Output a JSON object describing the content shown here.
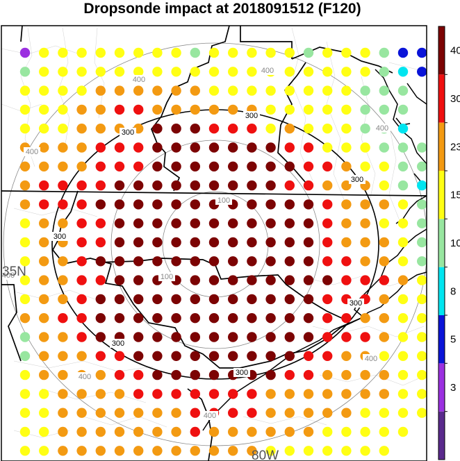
{
  "title": "Dropsonde impact at 2018091512 (F120)",
  "chart_data": {
    "type": "heatmap",
    "title": "Dropsonde impact at 2018091512 (F120)",
    "map": {
      "lat_label": "35N",
      "lon_label": "80W",
      "range_contours": [
        {
          "value": 100,
          "label": "100",
          "color": "#888888"
        },
        {
          "value": 200,
          "label": "",
          "color": "#888888"
        },
        {
          "value": 300,
          "label": "300",
          "color": "#000000"
        },
        {
          "value": 400,
          "label": "400",
          "color": "#888888"
        }
      ]
    },
    "colorbar": {
      "tick_labels": [
        "3",
        "5",
        "8",
        "10",
        "15",
        "23",
        "30",
        "40"
      ],
      "bins": [
        {
          "min": 0,
          "max": 3,
          "color": "#5a2a8c"
        },
        {
          "min": 3,
          "max": 5,
          "color": "#9b30e0"
        },
        {
          "min": 5,
          "max": 8,
          "color": "#0a14d8"
        },
        {
          "min": 8,
          "max": 10,
          "color": "#00e5f0"
        },
        {
          "min": 10,
          "max": 15,
          "color": "#98e6a0"
        },
        {
          "min": 15,
          "max": 23,
          "color": "#ffff14"
        },
        {
          "min": 23,
          "max": 30,
          "color": "#f39a12"
        },
        {
          "min": 30,
          "max": 40,
          "color": "#ef1010"
        },
        {
          "min": 40,
          "max": 50,
          "color": "#7c0303"
        }
      ]
    },
    "grid_legend": "values are impact bin codes: 0=purple,1=violet,2=blue,3=cyan,4=lightgreen,5=yellow,6=orange,7=red,8=darkred",
    "rows": [
      "1555555554555554555422",
      "4555555555555555555432",
      "555566666655555555444",
      "555667766666655555444",
      "555666688877756555443",
      "66667778888888775554442",
      "6666777888888887765544",
      "6777788888888877666543",
      "6777888888888888766654",
      "5667788888888888766554",
      "5667788888888888766654",
      "5667888888888888776654",
      "5667788888888888877765",
      "5667888888888888777655",
      "6677888888888888776655",
      "4667888888888888777655",
      "4666778888888887766555",
      "5666677888888877666655",
      "5566667777777666666655",
      "5566666667777666665555",
      "556666666766666655555",
      "55666666666665555555"
    ]
  }
}
